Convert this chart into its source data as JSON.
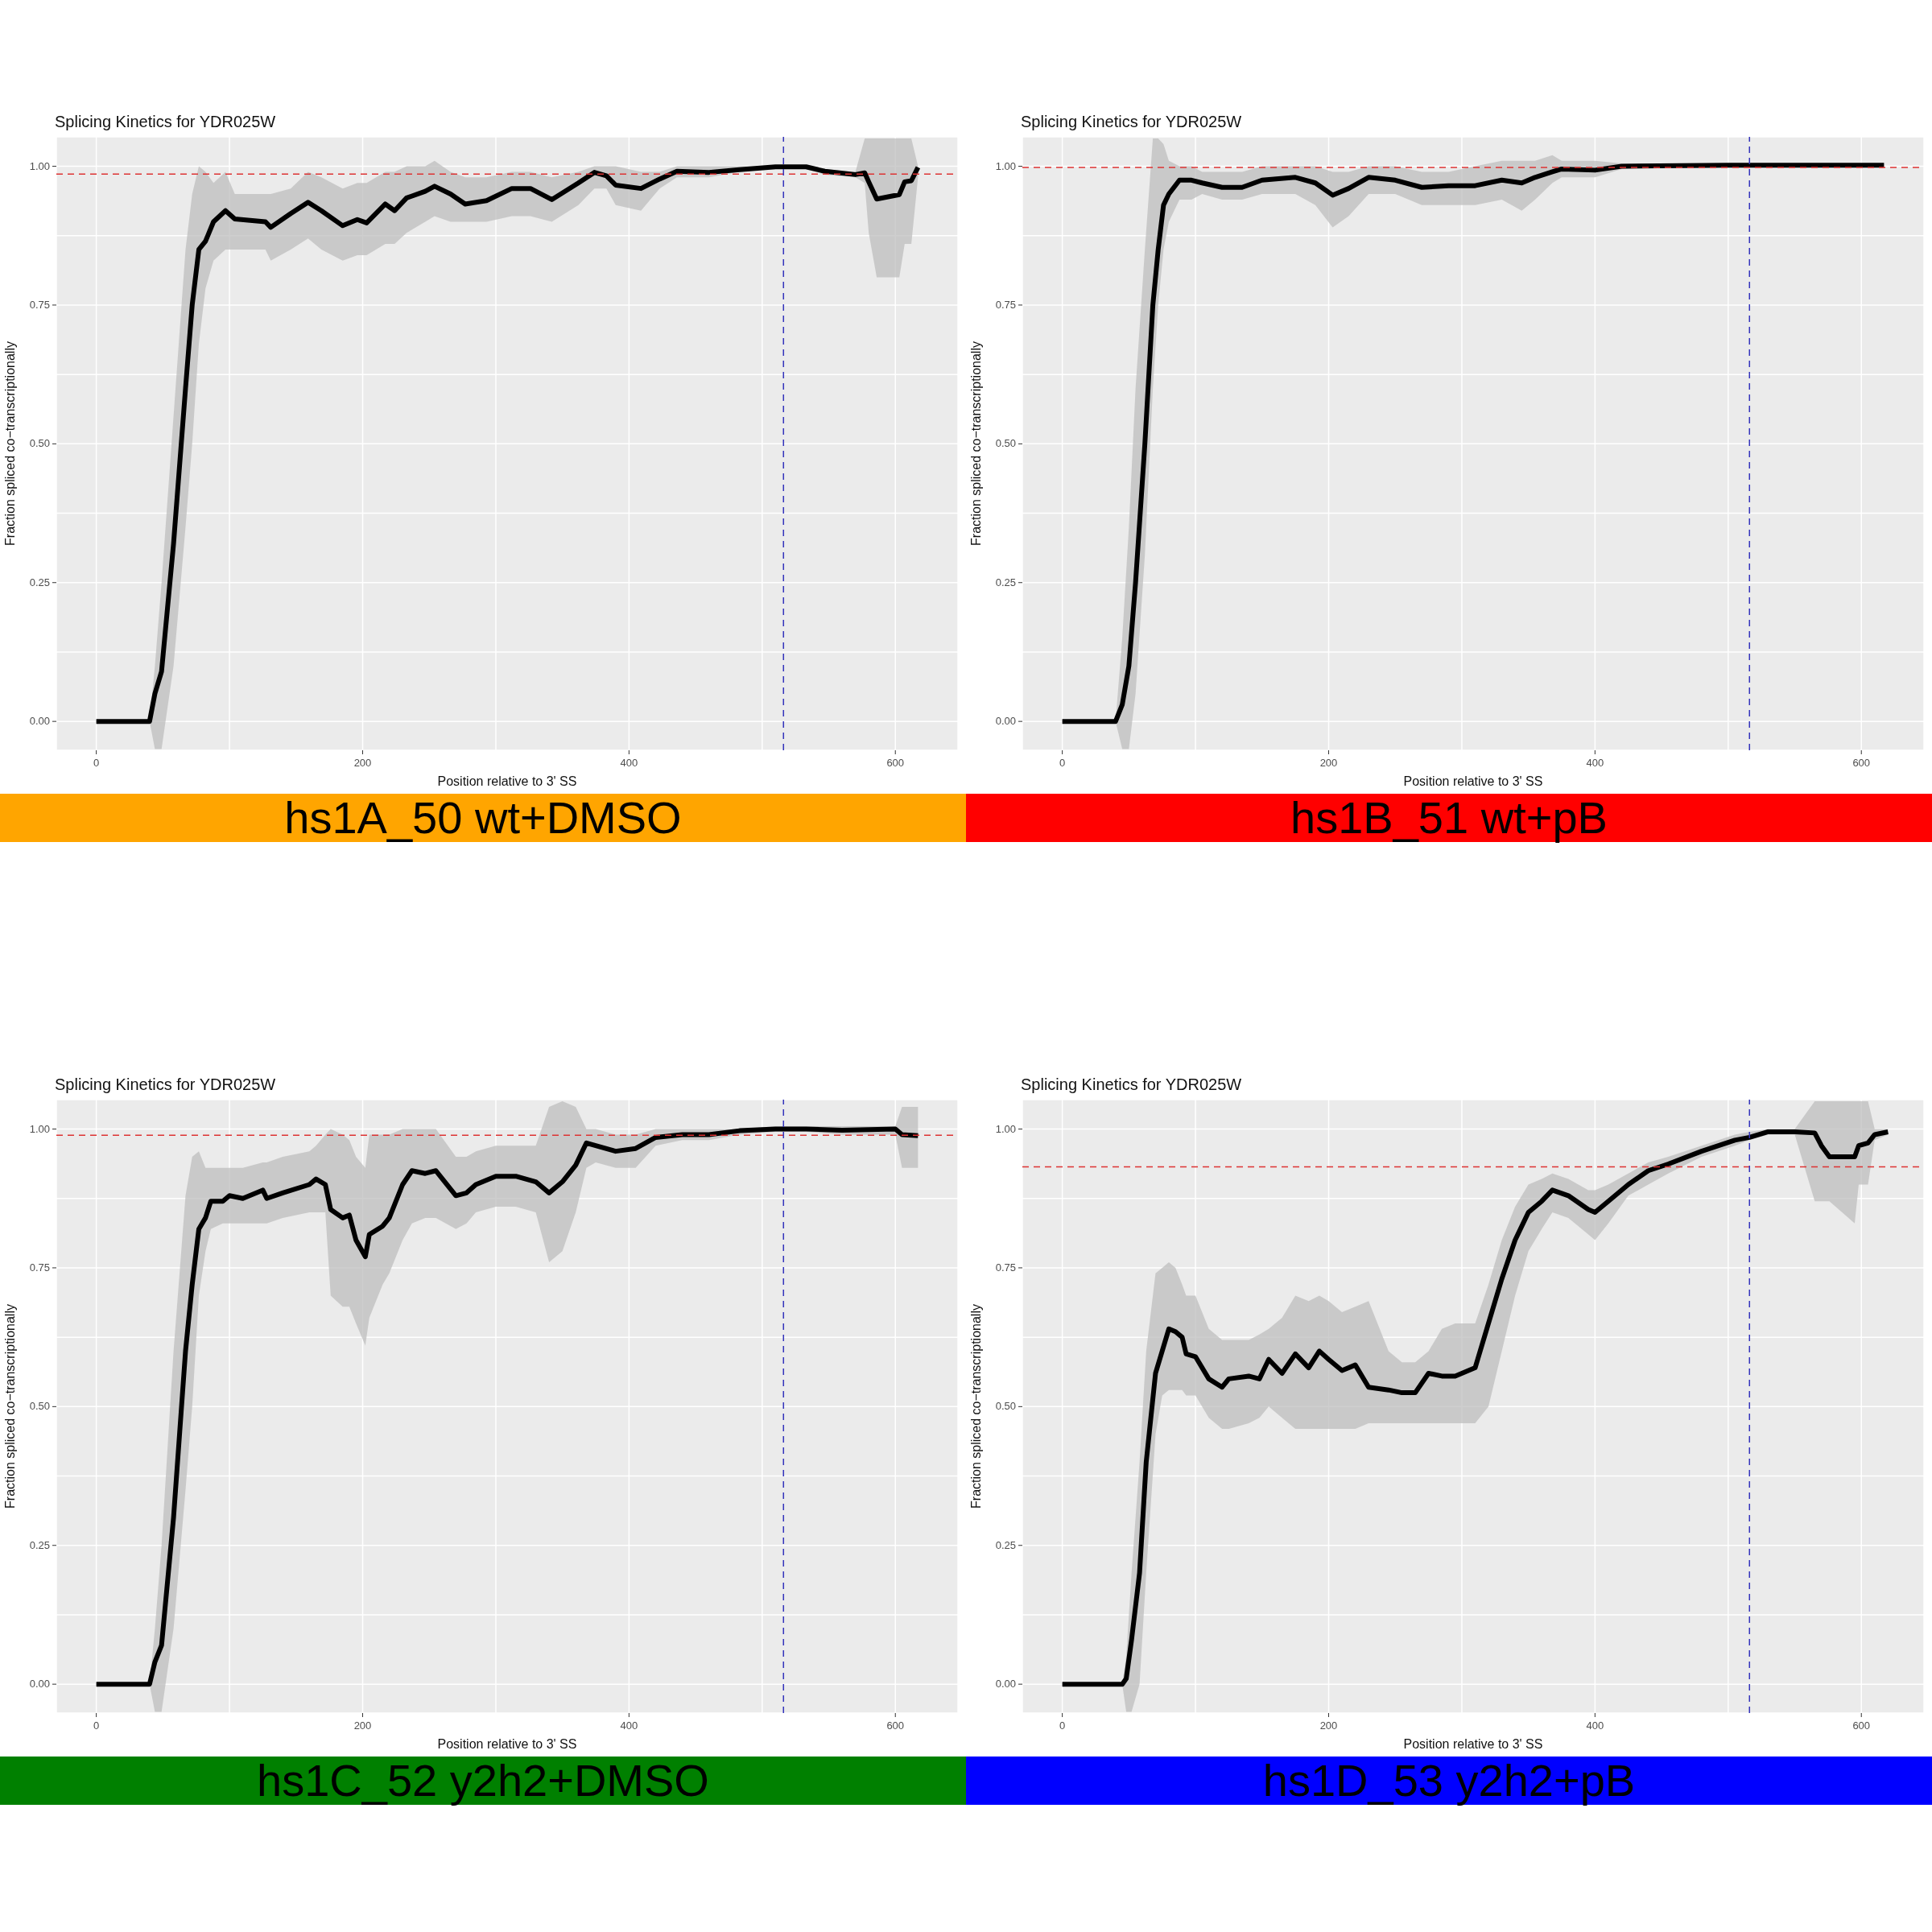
{
  "chart_data": [
    {
      "type": "line",
      "title": "Splicing Kinetics for YDR025W",
      "xlabel": "Position relative to 3' SS",
      "ylabel": "Fraction spliced co−transcriptionally",
      "annotations": [
        "hs1A_50 wt+DMSO"
      ],
      "xlim": [
        -30,
        647
      ],
      "ylim": [
        -0.052,
        1.053
      ],
      "grid": true,
      "xticks": [
        0,
        {
          "value": 100,
          "label": null
        },
        200,
        {
          "value": 300,
          "label": null
        },
        400,
        {
          "value": 500,
          "label": null
        },
        600
      ],
      "yticks": [
        {
          "value": 0,
          "label": "0.00"
        },
        {
          "value": 0.125,
          "label": null
        },
        {
          "value": 0.25,
          "label": "0.25"
        },
        {
          "value": 0.375,
          "label": null
        },
        {
          "value": 0.5,
          "label": "0.50"
        },
        {
          "value": 0.625,
          "label": null
        },
        {
          "value": 0.75,
          "label": "0.75"
        },
        {
          "value": 0.875,
          "label": null
        },
        {
          "value": 1,
          "label": "1.00"
        }
      ],
      "ref_lines": [
        {
          "axis": "y",
          "value": 0.986,
          "color": "#dd3333",
          "line_style": "dashed"
        },
        {
          "axis": "x",
          "value": 516,
          "color": "#3333bb",
          "line_style": "dashed"
        }
      ],
      "x": [
        0,
        40,
        44,
        49,
        58,
        67,
        72,
        77,
        82,
        88,
        97,
        104,
        127,
        131,
        146,
        159,
        169,
        185,
        196,
        203,
        217,
        224,
        233,
        247,
        254,
        266,
        277,
        293,
        312,
        326,
        342,
        362,
        374,
        383,
        390,
        409,
        423,
        436,
        460,
        483,
        510,
        533,
        547,
        570,
        577,
        580,
        586,
        603,
        607,
        612,
        617
      ],
      "series": [
        {
          "color": "#000000",
          "values": [
            0,
            0,
            0.05,
            0.09,
            0.32,
            0.6,
            0.75,
            0.85,
            0.865,
            0.9,
            0.92,
            0.905,
            0.9,
            0.89,
            0.915,
            0.935,
            0.92,
            0.893,
            0.904,
            0.898,
            0.932,
            0.92,
            0.943,
            0.955,
            0.964,
            0.95,
            0.932,
            0.938,
            0.96,
            0.96,
            0.94,
            0.97,
            0.989,
            0.983,
            0.966,
            0.96,
            0.977,
            0.991,
            0.989,
            0.994,
            0.999,
            0.999,
            0.991,
            0.985,
            0.988,
            0.972,
            0.941,
            0.949,
            0.972,
            0.974,
            0.998
          ],
          "lower": [
            0,
            0,
            -0.05,
            -0.05,
            0.1,
            0.35,
            0.5,
            0.68,
            0.78,
            0.83,
            0.85,
            0.85,
            0.85,
            0.83,
            0.85,
            0.87,
            0.85,
            0.83,
            0.84,
            0.84,
            0.86,
            0.86,
            0.88,
            0.9,
            0.91,
            0.9,
            0.9,
            0.9,
            0.91,
            0.91,
            0.9,
            0.93,
            0.96,
            0.96,
            0.93,
            0.92,
            0.96,
            0.98,
            0.98,
            0.99,
            0.995,
            0.995,
            0.985,
            0.98,
            0.97,
            0.88,
            0.8,
            0.8,
            0.86,
            0.86,
            0.98
          ],
          "upper": [
            0,
            0,
            0.1,
            0.25,
            0.55,
            0.85,
            0.95,
            1.0,
            0.99,
            0.97,
            0.99,
            0.95,
            0.95,
            0.95,
            0.96,
            0.99,
            0.98,
            0.96,
            0.97,
            0.97,
            0.99,
            0.99,
            1.0,
            1.0,
            1.01,
            0.99,
            0.98,
            0.98,
            0.99,
            0.99,
            0.98,
            0.99,
            1.0,
            1.0,
            1.0,
            0.99,
            0.99,
            1.0,
            1.0,
            1.0,
            1.0,
            1.0,
            0.995,
            0.99,
            1.05,
            1.05,
            1.05,
            1.05,
            1.05,
            1.05,
            1.0
          ]
        }
      ]
    },
    {
      "type": "line",
      "title": "Splicing Kinetics for YDR025W",
      "xlabel": "Position relative to 3' SS",
      "ylabel": "Fraction spliced co−transcriptionally",
      "annotations": [
        "hs1B_51 wt+pB"
      ],
      "xlim": [
        -30,
        647
      ],
      "ylim": [
        -0.052,
        1.053
      ],
      "grid": true,
      "xticks": [
        0,
        {
          "value": 100,
          "label": null
        },
        200,
        {
          "value": 300,
          "label": null
        },
        400,
        {
          "value": 500,
          "label": null
        },
        600
      ],
      "yticks": [
        {
          "value": 0,
          "label": "0.00"
        },
        {
          "value": 0.125,
          "label": null
        },
        {
          "value": 0.25,
          "label": "0.25"
        },
        {
          "value": 0.375,
          "label": null
        },
        {
          "value": 0.5,
          "label": "0.50"
        },
        {
          "value": 0.625,
          "label": null
        },
        {
          "value": 0.75,
          "label": "0.75"
        },
        {
          "value": 0.875,
          "label": null
        },
        {
          "value": 1,
          "label": "1.00"
        }
      ],
      "ref_lines": [
        {
          "axis": "y",
          "value": 0.998,
          "color": "#dd3333",
          "line_style": "dashed"
        },
        {
          "axis": "x",
          "value": 516,
          "color": "#3333bb",
          "line_style": "dashed"
        }
      ],
      "x": [
        0,
        40,
        45,
        50,
        55,
        62,
        68,
        72,
        76,
        80,
        88,
        97,
        105,
        120,
        135,
        150,
        175,
        190,
        203,
        215,
        230,
        250,
        270,
        290,
        310,
        330,
        345,
        355,
        368,
        375,
        400,
        420,
        500,
        617
      ],
      "series": [
        {
          "color": "#000000",
          "values": [
            0,
            0,
            0.03,
            0.1,
            0.25,
            0.5,
            0.75,
            0.85,
            0.93,
            0.95,
            0.975,
            0.975,
            0.97,
            0.962,
            0.962,
            0.975,
            0.98,
            0.97,
            0.948,
            0.96,
            0.98,
            0.975,
            0.962,
            0.965,
            0.965,
            0.975,
            0.97,
            0.98,
            0.99,
            0.995,
            0.993,
            1.0,
            1.002,
            1.002
          ],
          "lower": [
            0,
            0,
            -0.05,
            -0.05,
            0.05,
            0.3,
            0.6,
            0.75,
            0.85,
            0.9,
            0.94,
            0.94,
            0.95,
            0.94,
            0.94,
            0.95,
            0.95,
            0.93,
            0.89,
            0.91,
            0.95,
            0.95,
            0.93,
            0.93,
            0.93,
            0.94,
            0.92,
            0.94,
            0.97,
            0.98,
            0.98,
            0.995,
            1.0,
            1.0
          ],
          "upper": [
            0,
            0,
            0.15,
            0.35,
            0.6,
            0.85,
            1.05,
            1.05,
            1.04,
            1.01,
            1.0,
            1.0,
            0.99,
            0.99,
            0.99,
            1.0,
            1.0,
            1.0,
            0.99,
            0.99,
            1.0,
            1.0,
            0.99,
            0.99,
            1.0,
            1.01,
            1.01,
            1.01,
            1.02,
            1.01,
            1.01,
            1.005,
            1.005,
            1.005
          ]
        }
      ]
    },
    {
      "type": "line",
      "title": "Splicing Kinetics for YDR025W",
      "xlabel": "Position relative to 3' SS",
      "ylabel": "Fraction spliced co−transcriptionally",
      "annotations": [
        "hs1C_52 y2h2+DMSO"
      ],
      "xlim": [
        -30,
        647
      ],
      "ylim": [
        -0.052,
        1.053
      ],
      "grid": true,
      "xticks": [
        0,
        {
          "value": 100,
          "label": null
        },
        200,
        {
          "value": 300,
          "label": null
        },
        400,
        {
          "value": 500,
          "label": null
        },
        600
      ],
      "yticks": [
        {
          "value": 0,
          "label": "0.00"
        },
        {
          "value": 0.125,
          "label": null
        },
        {
          "value": 0.25,
          "label": "0.25"
        },
        {
          "value": 0.375,
          "label": null
        },
        {
          "value": 0.5,
          "label": "0.50"
        },
        {
          "value": 0.625,
          "label": null
        },
        {
          "value": 0.75,
          "label": "0.75"
        },
        {
          "value": 0.875,
          "label": null
        },
        {
          "value": 1,
          "label": "1.00"
        }
      ],
      "ref_lines": [
        {
          "axis": "y",
          "value": 0.989,
          "color": "#dd3333",
          "line_style": "dashed"
        },
        {
          "axis": "x",
          "value": 516,
          "color": "#3333bb",
          "line_style": "dashed"
        }
      ],
      "x": [
        0,
        40,
        44,
        49,
        58,
        67,
        72,
        77,
        82,
        86,
        95,
        100,
        110,
        125,
        128,
        140,
        160,
        165,
        172,
        176,
        185,
        190,
        195,
        202,
        205,
        215,
        220,
        230,
        237,
        247,
        255,
        270,
        278,
        285,
        300,
        315,
        330,
        340,
        350,
        360,
        368,
        375,
        390,
        405,
        420,
        440,
        460,
        483,
        510,
        533,
        560,
        600,
        605,
        617
      ],
      "series": [
        {
          "color": "#000000",
          "values": [
            0,
            0,
            0.04,
            0.07,
            0.3,
            0.6,
            0.72,
            0.82,
            0.84,
            0.87,
            0.87,
            0.88,
            0.875,
            0.89,
            0.875,
            0.885,
            0.9,
            0.91,
            0.9,
            0.855,
            0.84,
            0.845,
            0.8,
            0.77,
            0.81,
            0.825,
            0.84,
            0.9,
            0.925,
            0.92,
            0.925,
            0.88,
            0.885,
            0.9,
            0.915,
            0.915,
            0.905,
            0.885,
            0.905,
            0.935,
            0.975,
            0.97,
            0.96,
            0.965,
            0.985,
            0.99,
            0.99,
            0.997,
            1.0,
            1.0,
            0.998,
            1.0,
            0.99,
            0.988
          ],
          "lower": [
            0,
            0,
            -0.05,
            -0.05,
            0.1,
            0.35,
            0.5,
            0.7,
            0.78,
            0.82,
            0.83,
            0.83,
            0.83,
            0.83,
            0.83,
            0.84,
            0.85,
            0.85,
            0.85,
            0.7,
            0.68,
            0.68,
            0.65,
            0.61,
            0.66,
            0.72,
            0.74,
            0.8,
            0.83,
            0.84,
            0.84,
            0.82,
            0.83,
            0.85,
            0.86,
            0.86,
            0.85,
            0.76,
            0.78,
            0.85,
            0.93,
            0.94,
            0.93,
            0.93,
            0.97,
            0.98,
            0.98,
            0.99,
            0.995,
            0.995,
            0.99,
            0.99,
            0.93,
            0.93
          ],
          "upper": [
            0,
            0,
            0.1,
            0.25,
            0.6,
            0.88,
            0.95,
            0.96,
            0.93,
            0.93,
            0.93,
            0.93,
            0.93,
            0.94,
            0.94,
            0.95,
            0.96,
            0.97,
            0.99,
            1.0,
            0.99,
            0.98,
            0.95,
            0.93,
            0.99,
            0.99,
            0.99,
            1.0,
            1.0,
            1.0,
            1.0,
            0.95,
            0.95,
            0.96,
            0.97,
            0.97,
            0.97,
            1.04,
            1.05,
            1.04,
            1.0,
            1.0,
            0.99,
            0.99,
            1.0,
            1.0,
            1.0,
            1.0,
            1.005,
            1.005,
            1.005,
            1.005,
            1.04,
            1.04
          ]
        }
      ]
    },
    {
      "type": "line",
      "title": "Splicing Kinetics for YDR025W",
      "xlabel": "Position relative to 3' SS",
      "ylabel": "Fraction spliced co−transcriptionally",
      "annotations": [
        "hs1D_53 y2h2+pB"
      ],
      "xlim": [
        -30,
        647
      ],
      "ylim": [
        -0.052,
        1.053
      ],
      "grid": true,
      "xticks": [
        0,
        {
          "value": 100,
          "label": null
        },
        200,
        {
          "value": 300,
          "label": null
        },
        400,
        {
          "value": 500,
          "label": null
        },
        600
      ],
      "yticks": [
        {
          "value": 0,
          "label": "0.00"
        },
        {
          "value": 0.125,
          "label": null
        },
        {
          "value": 0.25,
          "label": "0.25"
        },
        {
          "value": 0.375,
          "label": null
        },
        {
          "value": 0.5,
          "label": "0.50"
        },
        {
          "value": 0.625,
          "label": null
        },
        {
          "value": 0.75,
          "label": "0.75"
        },
        {
          "value": 0.875,
          "label": null
        },
        {
          "value": 1,
          "label": "1.00"
        }
      ],
      "ref_lines": [
        {
          "axis": "y",
          "value": 0.932,
          "color": "#dd3333",
          "line_style": "dashed"
        },
        {
          "axis": "x",
          "value": 516,
          "color": "#3333bb",
          "line_style": "dashed"
        }
      ],
      "x": [
        0,
        45,
        48,
        52,
        58,
        63,
        70,
        75,
        80,
        85,
        90,
        93,
        100,
        110,
        120,
        125,
        140,
        148,
        155,
        165,
        175,
        185,
        193,
        200,
        210,
        220,
        230,
        245,
        255,
        265,
        275,
        285,
        295,
        310,
        320,
        330,
        340,
        350,
        360,
        368,
        380,
        395,
        400,
        410,
        425,
        440,
        455,
        480,
        505,
        516,
        530,
        550,
        565,
        570,
        576,
        595,
        598,
        605,
        610,
        620
      ],
      "series": [
        {
          "color": "#000000",
          "values": [
            0,
            0,
            0.01,
            0.08,
            0.2,
            0.4,
            0.56,
            0.6,
            0.64,
            0.635,
            0.625,
            0.595,
            0.59,
            0.55,
            0.535,
            0.55,
            0.555,
            0.55,
            0.585,
            0.56,
            0.595,
            0.57,
            0.6,
            0.585,
            0.565,
            0.575,
            0.535,
            0.53,
            0.525,
            0.525,
            0.56,
            0.555,
            0.555,
            0.57,
            0.65,
            0.73,
            0.8,
            0.85,
            0.87,
            0.89,
            0.88,
            0.855,
            0.85,
            0.87,
            0.9,
            0.925,
            0.937,
            0.96,
            0.98,
            0.985,
            0.995,
            0.995,
            0.993,
            0.97,
            0.95,
            0.95,
            0.97,
            0.975,
            0.99,
            0.995
          ],
          "lower": [
            0,
            0,
            -0.05,
            -0.05,
            0,
            0.2,
            0.45,
            0.52,
            0.53,
            0.53,
            0.53,
            0.52,
            0.52,
            0.48,
            0.46,
            0.46,
            0.47,
            0.48,
            0.5,
            0.48,
            0.46,
            0.46,
            0.46,
            0.46,
            0.46,
            0.46,
            0.47,
            0.47,
            0.47,
            0.47,
            0.47,
            0.47,
            0.47,
            0.47,
            0.5,
            0.6,
            0.7,
            0.78,
            0.82,
            0.85,
            0.84,
            0.81,
            0.8,
            0.83,
            0.88,
            0.9,
            0.92,
            0.95,
            0.97,
            0.98,
            0.99,
            0.99,
            0.87,
            0.87,
            0.87,
            0.83,
            0.9,
            0.9,
            0.98,
            0.99
          ],
          "upper": [
            0,
            0,
            0.05,
            0.2,
            0.4,
            0.6,
            0.74,
            0.75,
            0.76,
            0.75,
            0.72,
            0.7,
            0.7,
            0.64,
            0.62,
            0.62,
            0.62,
            0.63,
            0.64,
            0.66,
            0.7,
            0.69,
            0.7,
            0.69,
            0.67,
            0.68,
            0.69,
            0.6,
            0.58,
            0.58,
            0.6,
            0.64,
            0.65,
            0.65,
            0.72,
            0.8,
            0.86,
            0.9,
            0.91,
            0.92,
            0.91,
            0.89,
            0.89,
            0.9,
            0.92,
            0.94,
            0.95,
            0.97,
            0.99,
            0.995,
            1.0,
            1.0,
            1.05,
            1.05,
            1.05,
            1.05,
            1.05,
            1.05,
            1.0,
            1.0
          ]
        }
      ]
    }
  ]
}
